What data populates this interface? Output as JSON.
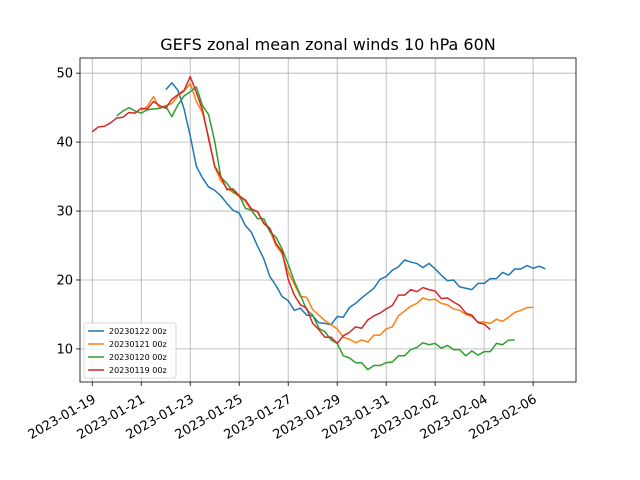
{
  "chart_data": {
    "type": "line",
    "title": "GEFS zonal mean zonal winds 10 hPa 60N",
    "xlabel": "",
    "ylabel": "",
    "x_start_date": "2023-01-19",
    "x_step_days": 0.25,
    "x_ticks": [
      "2023-01-19",
      "2023-01-21",
      "2023-01-23",
      "2023-01-25",
      "2023-01-27",
      "2023-01-29",
      "2023-01-31",
      "2023-02-02",
      "2023-02-04",
      "2023-02-06"
    ],
    "y_ticks": [
      10,
      20,
      30,
      40,
      50
    ],
    "xlim": [
      "2023-01-18T12:00",
      "2023-02-07T18:00"
    ],
    "ylim": [
      5.2,
      52.2
    ],
    "grid": true,
    "legend_position": "lower-left",
    "series": [
      {
        "name": "20230122 00z",
        "color": "#1f77b4",
        "start_index": 12,
        "values": [
          47.6,
          48.6,
          47.5,
          44.8,
          40.9,
          36.5,
          34.8,
          33.5,
          33.0,
          32.2,
          31.1,
          30.1,
          29.7,
          27.9,
          26.9,
          24.9,
          23.1,
          20.5,
          19.2,
          17.6,
          17.0,
          15.6,
          15.9,
          14.9,
          14.8,
          13.8,
          13.7,
          13.5,
          14.7,
          14.6,
          16.0,
          16.6,
          17.4,
          18.1,
          18.8,
          20.1,
          20.5,
          21.4,
          21.9,
          22.9,
          22.6,
          22.4,
          21.8,
          22.4,
          21.6,
          20.7,
          19.9,
          20.0,
          19.0,
          18.8,
          18.6,
          19.5,
          19.5,
          20.2,
          20.2,
          21.1,
          20.7,
          21.6,
          21.6,
          22.1,
          21.7,
          22.0,
          21.6
        ]
      },
      {
        "name": "20230121 00z",
        "color": "#ff7f0e",
        "start_index": 8,
        "values": [
          44.6,
          45.2,
          46.6,
          44.9,
          45.3,
          45.6,
          46.7,
          47.4,
          48.5,
          45.9,
          44.3,
          40.7,
          36.4,
          34.4,
          33.3,
          32.7,
          32.1,
          31.4,
          30.1,
          29.9,
          28.3,
          27.2,
          25.0,
          23.8,
          21.2,
          19.4,
          17.6,
          17.5,
          15.7,
          14.9,
          14.1,
          13.5,
          12.9,
          11.7,
          11.4,
          10.9,
          11.3,
          11.0,
          12.0,
          12.0,
          12.9,
          13.2,
          14.8,
          15.5,
          16.2,
          16.6,
          17.4,
          17.1,
          17.2,
          16.6,
          16.4,
          15.8,
          15.6,
          15.0,
          14.7,
          13.9,
          13.9,
          13.7,
          14.3,
          14.0,
          14.6,
          15.3,
          15.6,
          16.0,
          16.0
        ]
      },
      {
        "name": "20230120 00z",
        "color": "#2ca02c",
        "start_index": 4,
        "values": [
          43.8,
          44.5,
          45.0,
          44.5,
          44.2,
          44.7,
          44.8,
          44.9,
          45.2,
          43.7,
          45.4,
          46.7,
          47.3,
          48.0,
          45.3,
          44.0,
          40.1,
          34.9,
          34.0,
          32.8,
          32.3,
          30.4,
          30.1,
          28.9,
          28.9,
          27.0,
          26.2,
          24.5,
          22.3,
          19.8,
          17.8,
          15.7,
          14.9,
          13.0,
          12.5,
          11.3,
          10.8,
          9.0,
          8.7,
          8.0,
          8.0,
          7.0,
          7.6,
          7.6,
          8.0,
          8.1,
          9.0,
          9.0,
          9.9,
          10.2,
          10.9,
          10.6,
          10.8,
          10.1,
          10.5,
          9.9,
          9.9,
          9.0,
          9.7,
          9.1,
          9.6,
          9.6,
          10.8,
          10.6,
          11.3,
          11.3
        ]
      },
      {
        "name": "20230119 00z",
        "color": "#d62728",
        "start_index": 0,
        "values": [
          41.5,
          42.2,
          42.3,
          42.8,
          43.5,
          43.6,
          44.3,
          44.2,
          44.9,
          44.8,
          45.9,
          45.3,
          44.9,
          46.2,
          46.9,
          47.5,
          49.5,
          47.2,
          44.7,
          40.5,
          36.5,
          35.0,
          33.1,
          33.2,
          32.2,
          31.6,
          30.3,
          29.9,
          28.2,
          27.5,
          25.3,
          24.1,
          20.1,
          17.8,
          16.4,
          15.9,
          13.7,
          12.8,
          11.7,
          11.7,
          10.8,
          11.9,
          12.4,
          13.2,
          13.0,
          14.2,
          14.8,
          15.2,
          15.8,
          16.3,
          17.8,
          17.8,
          18.6,
          18.3,
          18.9,
          18.6,
          18.4,
          17.3,
          17.4,
          16.8,
          16.3,
          15.2,
          14.9,
          13.8,
          13.6,
          12.8
        ]
      }
    ]
  }
}
